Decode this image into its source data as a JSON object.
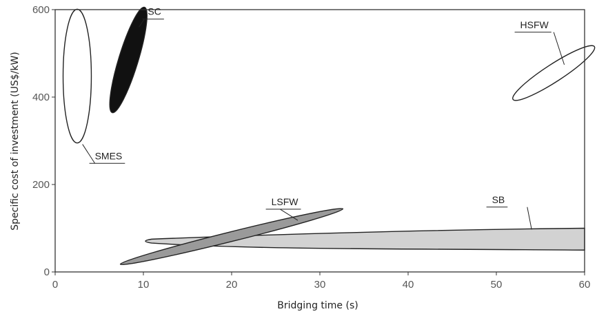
{
  "chart_data": {
    "type": "scatter",
    "xlabel": "Bridging time (s)",
    "ylabel": "Specific cost of investment (US$/kW)",
    "xlim": [
      0,
      60
    ],
    "ylim": [
      0,
      600
    ],
    "x_ticks": [
      "0",
      "10",
      "20",
      "30",
      "40",
      "50",
      "60"
    ],
    "y_ticks": [
      "0",
      "200",
      "400",
      "600"
    ],
    "grid": false,
    "regions": [
      {
        "name": "SMES",
        "shape": "ellipse",
        "center": [
          2.5,
          448
        ],
        "radius": [
          1.6,
          153
        ],
        "angle_deg": 0,
        "fill": "#ffffff",
        "label_at": [
          4.5,
          250
        ]
      },
      {
        "name": "SC",
        "shape": "ellipse",
        "center": [
          8.3,
          485
        ],
        "radius": [
          1.1,
          126
        ],
        "angle_deg": 0,
        "fill": "#111111",
        "rotate_px": 17,
        "label_at": [
          10.5,
          580
        ]
      },
      {
        "name": "HSFW",
        "shape": "ellipse",
        "center": [
          56.5,
          455
        ],
        "radius": [
          5.5,
          20
        ],
        "angle_deg": 0,
        "fill": "#ffffff",
        "rotate_px": -33,
        "label_at": [
          52.7,
          550
        ]
      },
      {
        "name": "LSFW",
        "shape": "ellipse",
        "center": [
          20,
          81
        ],
        "radius": [
          13,
          11
        ],
        "angle_deg": 0,
        "fill": "#9a9a9a",
        "rotate_px": -14,
        "label_at": [
          24.5,
          145
        ]
      },
      {
        "name": "SB",
        "shape": "band",
        "left_x": 10,
        "right_x": 60,
        "left_y_range": [
          66,
          75
        ],
        "right_y_range": [
          50,
          100
        ],
        "fill": "#d2d2d2",
        "label_at": [
          49.5,
          150
        ]
      }
    ]
  }
}
